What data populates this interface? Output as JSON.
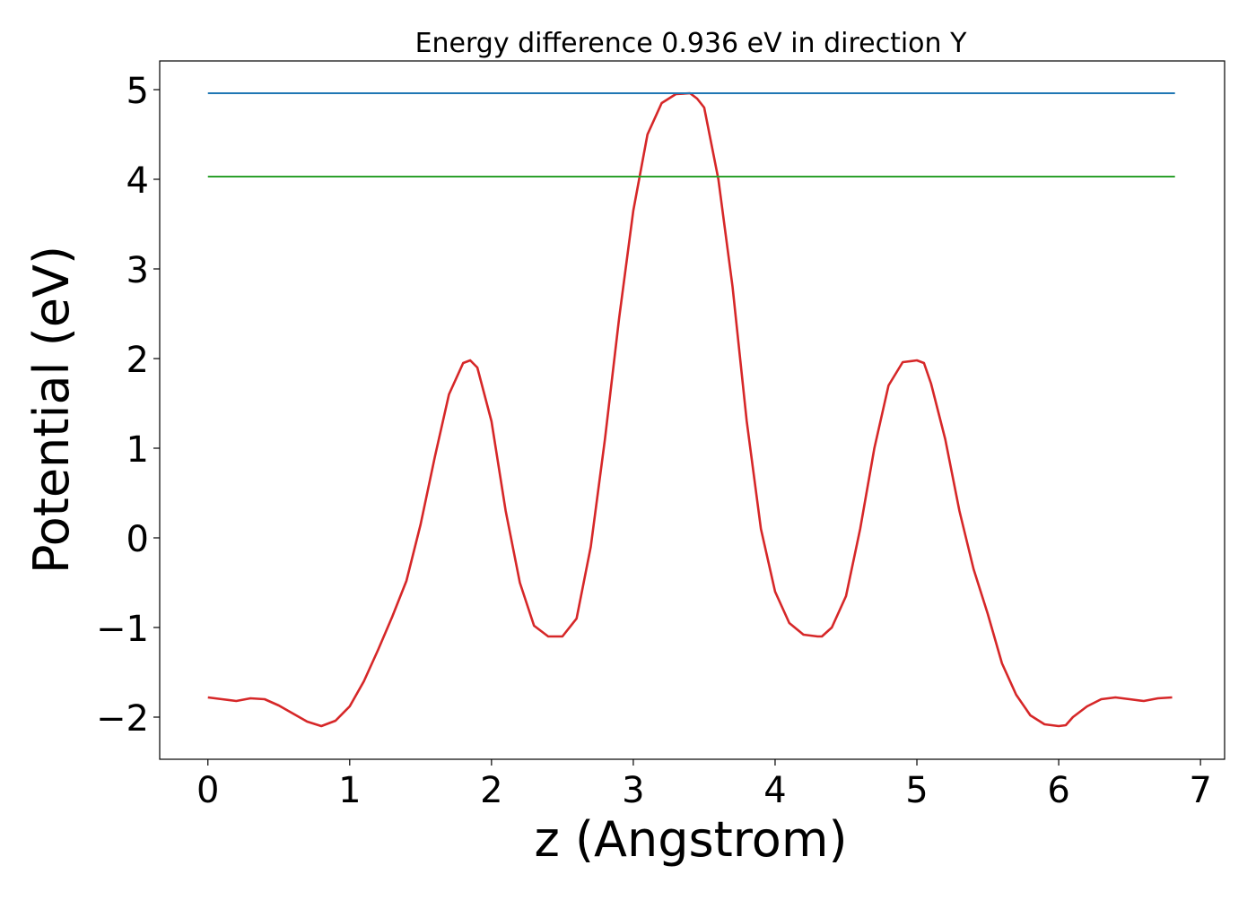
{
  "chart_data": {
    "type": "line",
    "title": "Energy difference 0.936 eV in direction Y",
    "xlabel": "z (Angstrom)",
    "ylabel": "Potential (eV)",
    "xlim": [
      -0.34,
      7.17
    ],
    "ylim": [
      -2.47,
      5.32
    ],
    "xticks": [
      0,
      1,
      2,
      3,
      4,
      5,
      6,
      7
    ],
    "yticks": [
      -2,
      -1,
      0,
      1,
      2,
      3,
      4,
      5
    ],
    "xtick_labels": [
      "0",
      "1",
      "2",
      "3",
      "4",
      "5",
      "6",
      "7"
    ],
    "ytick_labels": [
      "−2",
      "−1",
      "0",
      "1",
      "2",
      "3",
      "4",
      "5"
    ],
    "grid": false,
    "legend": "none",
    "series": [
      {
        "color": "#d62728",
        "x": [
          0.0,
          0.1,
          0.2,
          0.3,
          0.4,
          0.5,
          0.6,
          0.7,
          0.8,
          0.9,
          1.0,
          1.1,
          1.2,
          1.3,
          1.4,
          1.5,
          1.6,
          1.7,
          1.8,
          1.85,
          1.9,
          2.0,
          2.1,
          2.2,
          2.3,
          2.4,
          2.5,
          2.6,
          2.7,
          2.8,
          2.9,
          3.0,
          3.1,
          3.2,
          3.3,
          3.4,
          3.45,
          3.5,
          3.6,
          3.7,
          3.8,
          3.9,
          4.0,
          4.1,
          4.2,
          4.3,
          4.33,
          4.4,
          4.5,
          4.6,
          4.7,
          4.8,
          4.9,
          5.0,
          5.05,
          5.1,
          5.2,
          5.3,
          5.4,
          5.5,
          5.6,
          5.7,
          5.8,
          5.9,
          6.0,
          6.05,
          6.1,
          6.2,
          6.3,
          6.4,
          6.5,
          6.6,
          6.7,
          6.8
        ],
        "y": [
          -1.78,
          -1.8,
          -1.82,
          -1.79,
          -1.8,
          -1.87,
          -1.96,
          -2.05,
          -2.1,
          -2.04,
          -1.88,
          -1.6,
          -1.25,
          -0.88,
          -0.48,
          0.15,
          0.9,
          1.6,
          1.95,
          1.98,
          1.9,
          1.3,
          0.3,
          -0.5,
          -0.98,
          -1.1,
          -1.1,
          -0.9,
          -0.1,
          1.1,
          2.45,
          3.65,
          4.5,
          4.85,
          4.95,
          4.96,
          4.9,
          4.8,
          4.0,
          2.8,
          1.3,
          0.1,
          -0.6,
          -0.95,
          -1.08,
          -1.1,
          -1.1,
          -1.0,
          -0.65,
          0.1,
          1.0,
          1.7,
          1.96,
          1.98,
          1.95,
          1.72,
          1.1,
          0.3,
          -0.35,
          -0.85,
          -1.4,
          -1.75,
          -1.98,
          -2.08,
          -2.1,
          -2.09,
          -2.0,
          -1.88,
          -1.8,
          -1.78,
          -1.8,
          -1.82,
          -1.79,
          -1.78
        ]
      },
      {
        "color": "#1f77b4",
        "x": [
          0.0,
          6.82
        ],
        "y": [
          4.96,
          4.96
        ]
      },
      {
        "color": "#2ca02c",
        "x": [
          0.0,
          6.82
        ],
        "y": [
          4.03,
          4.03
        ]
      }
    ]
  }
}
